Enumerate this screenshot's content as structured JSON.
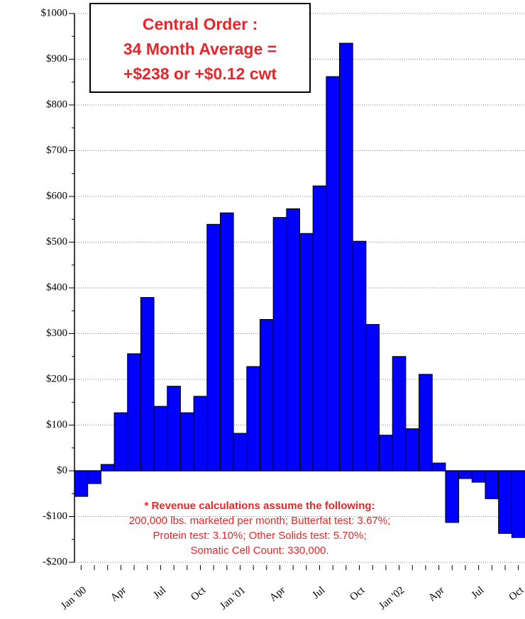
{
  "chart_data": {
    "type": "bar",
    "title": [
      "Central Order :",
      "34 Month Average =",
      "+$238 or +$0.12 cwt"
    ],
    "note": [
      "* Revenue calculations assume the following:",
      "200,000 lbs. marketed per month; Butterfat test: 3.67%;",
      "Protein test: 3.10%;  Other Solids test: 5.70%;",
      "Somatic Cell Count: 330,000."
    ],
    "categories": [
      "Jan '00",
      null,
      null,
      "Apr",
      null,
      null,
      "Jul",
      null,
      null,
      "Oct",
      null,
      null,
      "Jan '01",
      null,
      null,
      "Apr",
      null,
      null,
      "Jul",
      null,
      null,
      "Oct",
      null,
      null,
      "Jan '02",
      null,
      null,
      "Apr",
      null,
      null,
      "Jul",
      null,
      null,
      "Oct"
    ],
    "values": [
      -56,
      -28,
      14,
      127,
      256,
      379,
      141,
      185,
      127,
      163,
      539,
      564,
      82,
      228,
      331,
      554,
      573,
      519,
      623,
      862,
      935,
      502,
      320,
      78,
      250,
      92,
      211,
      17,
      -113,
      -17,
      -25,
      -61,
      -137,
      -146
    ],
    "color": "#0000ff",
    "ylim": [
      -200,
      1000
    ],
    "yticks": [
      {
        "value": -200,
        "label": "-$200"
      },
      {
        "value": -100,
        "label": "-$100"
      },
      {
        "value": 0,
        "label": "$0"
      },
      {
        "value": 100,
        "label": "$100"
      },
      {
        "value": 200,
        "label": "$200"
      },
      {
        "value": 300,
        "label": "$300"
      },
      {
        "value": 400,
        "label": "$400"
      },
      {
        "value": 500,
        "label": "$500"
      },
      {
        "value": 600,
        "label": "$600"
      },
      {
        "value": 700,
        "label": "$700"
      },
      {
        "value": 800,
        "label": "$800"
      },
      {
        "value": 900,
        "label": "$900"
      },
      {
        "value": 1000,
        "label": "$1000"
      }
    ],
    "grid": true
  }
}
